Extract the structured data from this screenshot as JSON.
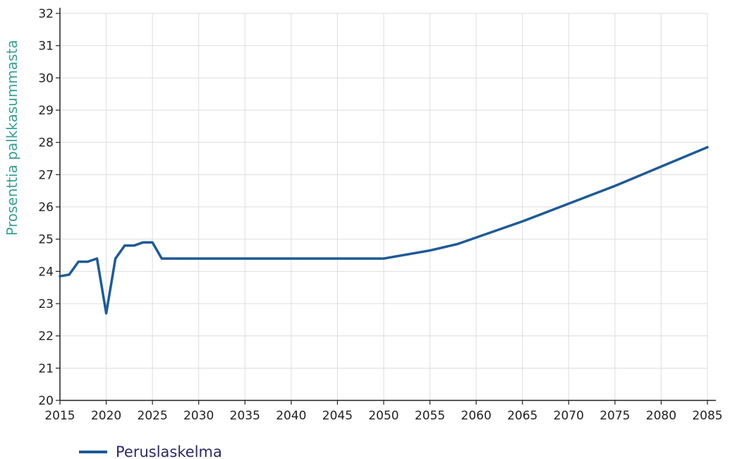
{
  "colors": {
    "series": "#1f5a96",
    "ylabel": "#3a9e9a",
    "legend_text": "#2d2a66",
    "grid": "#dedede",
    "axis": "#222222"
  },
  "chart_data": {
    "type": "line",
    "title": "",
    "xlabel": "",
    "ylabel": "Prosenttia palkkasummasta",
    "xlim": [
      2015,
      2085
    ],
    "ylim": [
      20,
      32
    ],
    "xticks": [
      2015,
      2020,
      2025,
      2030,
      2035,
      2040,
      2045,
      2050,
      2055,
      2060,
      2065,
      2070,
      2075,
      2080,
      2085
    ],
    "yticks": [
      20,
      21,
      22,
      23,
      24,
      25,
      26,
      27,
      28,
      29,
      30,
      31,
      32
    ],
    "grid": true,
    "legend_position": "bottom-left",
    "series": [
      {
        "name": "Peruslaskelma",
        "x": [
          2015,
          2016,
          2017,
          2018,
          2019,
          2020,
          2021,
          2022,
          2023,
          2024,
          2025,
          2026,
          2030,
          2040,
          2050,
          2055,
          2058,
          2060,
          2065,
          2070,
          2075,
          2080,
          2085
        ],
        "y": [
          23.85,
          23.9,
          24.3,
          24.3,
          24.4,
          22.7,
          24.4,
          24.8,
          24.8,
          24.9,
          24.9,
          24.4,
          24.4,
          24.4,
          24.4,
          24.65,
          24.85,
          25.05,
          25.55,
          26.1,
          26.65,
          27.25,
          27.85
        ]
      }
    ]
  }
}
